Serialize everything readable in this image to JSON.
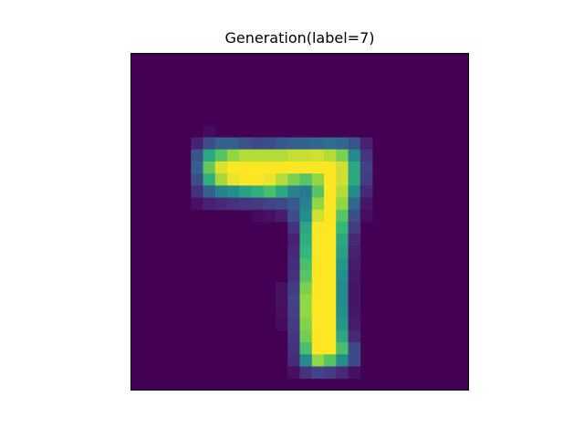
{
  "chart_data": {
    "type": "heatmap",
    "title": "Generation(label=7)",
    "xlabel": "",
    "ylabel": "",
    "axes_visible": false,
    "grid": false,
    "colormap": "viridis",
    "value_range": [
      0,
      1
    ],
    "shape": [
      28,
      28
    ],
    "background_value": 0.0,
    "cells": [
      [
        6,
        6,
        0.04
      ],
      [
        7,
        5,
        0.12
      ],
      [
        7,
        6,
        0.3
      ],
      [
        7,
        7,
        0.4
      ],
      [
        7,
        8,
        0.38
      ],
      [
        7,
        9,
        0.32
      ],
      [
        7,
        10,
        0.28
      ],
      [
        7,
        11,
        0.3
      ],
      [
        7,
        12,
        0.35
      ],
      [
        7,
        13,
        0.38
      ],
      [
        7,
        14,
        0.4
      ],
      [
        7,
        15,
        0.42
      ],
      [
        7,
        16,
        0.45
      ],
      [
        7,
        17,
        0.42
      ],
      [
        7,
        18,
        0.32
      ],
      [
        7,
        19,
        0.12
      ],
      [
        8,
        5,
        0.32
      ],
      [
        8,
        6,
        0.7
      ],
      [
        8,
        7,
        0.8
      ],
      [
        8,
        8,
        0.88
      ],
      [
        8,
        9,
        0.92
      ],
      [
        8,
        10,
        0.92
      ],
      [
        8,
        11,
        0.92
      ],
      [
        8,
        12,
        0.92
      ],
      [
        8,
        13,
        0.94
      ],
      [
        8,
        14,
        0.94
      ],
      [
        8,
        15,
        0.95
      ],
      [
        8,
        16,
        0.92
      ],
      [
        8,
        17,
        0.85
      ],
      [
        8,
        18,
        0.6
      ],
      [
        8,
        19,
        0.2
      ],
      [
        9,
        5,
        0.38
      ],
      [
        9,
        6,
        0.82
      ],
      [
        9,
        7,
        0.96
      ],
      [
        9,
        8,
        1.0
      ],
      [
        9,
        9,
        1.0
      ],
      [
        9,
        10,
        1.0
      ],
      [
        9,
        11,
        1.0
      ],
      [
        9,
        12,
        1.0
      ],
      [
        9,
        13,
        1.0
      ],
      [
        9,
        14,
        1.0
      ],
      [
        9,
        15,
        1.0
      ],
      [
        9,
        16,
        1.0
      ],
      [
        9,
        17,
        0.95
      ],
      [
        9,
        18,
        0.7
      ],
      [
        9,
        19,
        0.24
      ],
      [
        10,
        5,
        0.3
      ],
      [
        10,
        6,
        0.72
      ],
      [
        10,
        7,
        0.9
      ],
      [
        10,
        8,
        0.98
      ],
      [
        10,
        9,
        1.0
      ],
      [
        10,
        10,
        1.0
      ],
      [
        10,
        11,
        0.98
      ],
      [
        10,
        12,
        0.92
      ],
      [
        10,
        13,
        0.85
      ],
      [
        10,
        14,
        0.8
      ],
      [
        10,
        15,
        0.88
      ],
      [
        10,
        16,
        1.0
      ],
      [
        10,
        17,
        0.95
      ],
      [
        10,
        18,
        0.7
      ],
      [
        10,
        19,
        0.22
      ],
      [
        11,
        5,
        0.18
      ],
      [
        11,
        6,
        0.4
      ],
      [
        11,
        7,
        0.55
      ],
      [
        11,
        8,
        0.62
      ],
      [
        11,
        9,
        0.68
      ],
      [
        11,
        10,
        0.72
      ],
      [
        11,
        11,
        0.78
      ],
      [
        11,
        12,
        0.7
      ],
      [
        11,
        13,
        0.55
      ],
      [
        11,
        14,
        0.5
      ],
      [
        11,
        15,
        0.8
      ],
      [
        11,
        16,
        1.0
      ],
      [
        11,
        17,
        0.92
      ],
      [
        11,
        18,
        0.6
      ],
      [
        11,
        19,
        0.15
      ],
      [
        12,
        5,
        0.06
      ],
      [
        12,
        6,
        0.12
      ],
      [
        12,
        7,
        0.15
      ],
      [
        12,
        8,
        0.18
      ],
      [
        12,
        9,
        0.2
      ],
      [
        12,
        10,
        0.22
      ],
      [
        12,
        11,
        0.25
      ],
      [
        12,
        12,
        0.28
      ],
      [
        12,
        13,
        0.35
      ],
      [
        12,
        14,
        0.55
      ],
      [
        12,
        15,
        0.88
      ],
      [
        12,
        16,
        1.0
      ],
      [
        12,
        17,
        0.88
      ],
      [
        12,
        18,
        0.42
      ],
      [
        12,
        19,
        0.08
      ],
      [
        13,
        10,
        0.04
      ],
      [
        13,
        11,
        0.06
      ],
      [
        13,
        12,
        0.1
      ],
      [
        13,
        13,
        0.3
      ],
      [
        13,
        14,
        0.62
      ],
      [
        13,
        15,
        0.95
      ],
      [
        13,
        16,
        1.0
      ],
      [
        13,
        17,
        0.8
      ],
      [
        13,
        18,
        0.3
      ],
      [
        13,
        19,
        0.05
      ],
      [
        14,
        13,
        0.18
      ],
      [
        14,
        14,
        0.7
      ],
      [
        14,
        15,
        1.0
      ],
      [
        14,
        16,
        1.0
      ],
      [
        14,
        17,
        0.75
      ],
      [
        14,
        18,
        0.22
      ],
      [
        15,
        13,
        0.12
      ],
      [
        15,
        14,
        0.72
      ],
      [
        15,
        15,
        1.0
      ],
      [
        15,
        16,
        1.0
      ],
      [
        15,
        17,
        0.7
      ],
      [
        15,
        18,
        0.15
      ],
      [
        16,
        13,
        0.14
      ],
      [
        16,
        14,
        0.75
      ],
      [
        16,
        15,
        1.0
      ],
      [
        16,
        16,
        1.0
      ],
      [
        16,
        17,
        0.68
      ],
      [
        16,
        18,
        0.12
      ],
      [
        17,
        13,
        0.16
      ],
      [
        17,
        14,
        0.78
      ],
      [
        17,
        15,
        1.0
      ],
      [
        17,
        16,
        1.0
      ],
      [
        17,
        17,
        0.65
      ],
      [
        17,
        18,
        0.1
      ],
      [
        18,
        13,
        0.18
      ],
      [
        18,
        14,
        0.8
      ],
      [
        18,
        15,
        1.0
      ],
      [
        18,
        16,
        1.0
      ],
      [
        18,
        17,
        0.62
      ],
      [
        18,
        18,
        0.08
      ],
      [
        19,
        12,
        0.06
      ],
      [
        19,
        13,
        0.22
      ],
      [
        19,
        14,
        0.85
      ],
      [
        19,
        15,
        1.0
      ],
      [
        19,
        16,
        1.0
      ],
      [
        19,
        17,
        0.6
      ],
      [
        19,
        18,
        0.07
      ],
      [
        20,
        12,
        0.06
      ],
      [
        20,
        13,
        0.25
      ],
      [
        20,
        14,
        0.88
      ],
      [
        20,
        15,
        1.0
      ],
      [
        20,
        16,
        1.0
      ],
      [
        20,
        17,
        0.6
      ],
      [
        20,
        18,
        0.07
      ],
      [
        21,
        12,
        0.05
      ],
      [
        21,
        13,
        0.24
      ],
      [
        21,
        14,
        0.88
      ],
      [
        21,
        15,
        1.0
      ],
      [
        21,
        16,
        1.0
      ],
      [
        21,
        17,
        0.62
      ],
      [
        21,
        18,
        0.08
      ],
      [
        22,
        12,
        0.04
      ],
      [
        22,
        13,
        0.22
      ],
      [
        22,
        14,
        0.86
      ],
      [
        22,
        15,
        1.0
      ],
      [
        22,
        16,
        1.0
      ],
      [
        22,
        17,
        0.65
      ],
      [
        22,
        18,
        0.1
      ],
      [
        23,
        13,
        0.2
      ],
      [
        23,
        14,
        0.84
      ],
      [
        23,
        15,
        1.0
      ],
      [
        23,
        16,
        1.0
      ],
      [
        23,
        17,
        0.7
      ],
      [
        23,
        18,
        0.14
      ],
      [
        24,
        13,
        0.18
      ],
      [
        24,
        14,
        0.78
      ],
      [
        24,
        15,
        1.0
      ],
      [
        24,
        16,
        1.0
      ],
      [
        24,
        17,
        0.78
      ],
      [
        24,
        18,
        0.28
      ],
      [
        25,
        13,
        0.16
      ],
      [
        25,
        14,
        0.6
      ],
      [
        25,
        15,
        0.88
      ],
      [
        25,
        16,
        0.8
      ],
      [
        25,
        17,
        0.62
      ],
      [
        25,
        18,
        0.28
      ],
      [
        26,
        13,
        0.06
      ],
      [
        26,
        14,
        0.18
      ],
      [
        26,
        15,
        0.25
      ],
      [
        26,
        16,
        0.22
      ],
      [
        26,
        17,
        0.15
      ],
      [
        26,
        18,
        0.06
      ]
    ]
  }
}
